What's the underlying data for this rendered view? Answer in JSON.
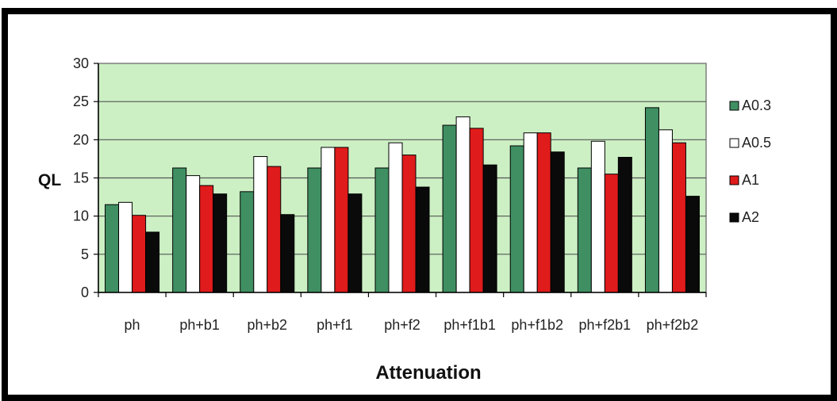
{
  "chart_data": {
    "type": "bar",
    "categories": [
      "ph",
      "ph+b1",
      "ph+b2",
      "ph+f1",
      "ph+f2",
      "ph+f1b1",
      "ph+f1b2",
      "ph+f2b1",
      "ph+f2b2"
    ],
    "series": [
      {
        "name": "A0.3",
        "color": "#3f8f62",
        "values": [
          11.5,
          16.3,
          13.2,
          16.3,
          16.3,
          21.9,
          19.2,
          16.3,
          24.2
        ]
      },
      {
        "name": "A0.5",
        "color": "#ffffff",
        "values": [
          11.8,
          15.3,
          17.8,
          19.0,
          19.6,
          23.0,
          20.9,
          19.8,
          21.3
        ]
      },
      {
        "name": "A1",
        "color": "#e01b1b",
        "values": [
          10.1,
          14.0,
          16.5,
          19.0,
          18.0,
          21.5,
          20.9,
          15.5,
          19.6
        ]
      },
      {
        "name": "A2",
        "color": "#0a0a0a",
        "values": [
          7.9,
          12.9,
          10.2,
          12.9,
          13.8,
          16.7,
          18.4,
          17.7,
          12.6
        ]
      }
    ],
    "xlabel": "Attenuation",
    "ylabel": "QL",
    "ylim": [
      0,
      30
    ],
    "yticks": [
      0,
      5,
      10,
      15,
      20,
      25,
      30
    ],
    "grid": true,
    "legend": "right",
    "plot_background": "#ccf0c4"
  }
}
